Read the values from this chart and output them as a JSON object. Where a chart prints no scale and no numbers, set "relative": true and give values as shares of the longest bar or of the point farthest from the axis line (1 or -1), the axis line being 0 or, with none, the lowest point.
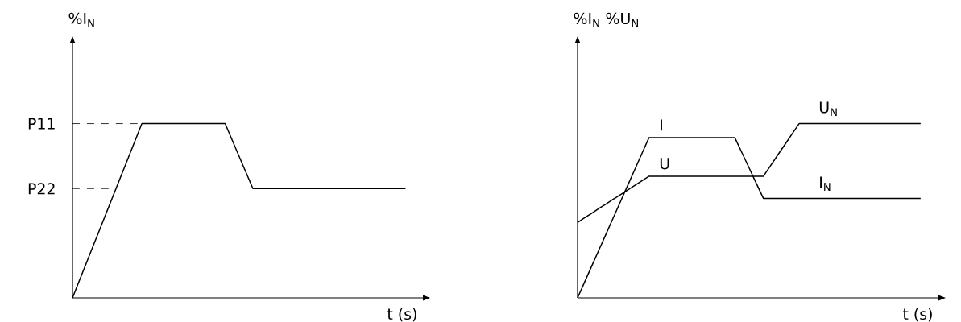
{
  "chart_data": [
    {
      "type": "line",
      "relative": true,
      "xlabel": "t (s)",
      "ylabel": "%I$_{N}$",
      "categories": [
        null,
        null,
        null,
        null,
        null,
        null,
        null,
        null,
        null,
        null,
        null,
        null,
        null,
        null,
        null,
        null,
        null,
        null,
        null,
        null,
        null,
        null,
        null,
        null,
        null,
        null,
        null,
        null,
        null,
        null,
        null,
        null,
        null,
        null,
        null,
        null,
        null,
        null,
        null,
        null,
        null,
        null,
        null,
        null,
        null,
        null,
        null,
        null,
        null
      ],
      "series": [
        {
          "color": "#000000",
          "values": [
            0,
            0.1,
            0.2,
            0.3,
            0.4,
            0.5,
            0.6,
            0.7,
            0.8,
            0.9,
            1,
            1,
            1,
            1,
            1,
            1,
            1,
            1,
            1,
            1,
            1,
            1,
            1,
            0.907,
            0.813,
            0.72,
            0.627,
            0.627,
            0.627,
            0.627,
            0.627,
            0.627,
            0.627,
            0.627,
            0.627,
            0.627,
            0.627,
            0.627,
            0.627,
            0.627,
            0.627,
            0.627,
            0.627,
            0.627,
            0.627,
            0.627,
            0.627,
            0.627,
            0.627
          ]
        }
      ],
      "ref_lines": [
        {
          "axis": "y",
          "value": 1,
          "label": "P11",
          "line_style": "dashed"
        },
        {
          "axis": "y",
          "value": 0.627,
          "label": "P22",
          "line_style": "dashed"
        }
      ]
    },
    {
      "type": "line",
      "relative": true,
      "xlabel": "t (s)",
      "ylabel": "%I$_{N}$  %U$_{N}$",
      "categories": [
        null,
        null,
        null,
        null,
        null,
        null,
        null,
        null,
        null,
        null,
        null,
        null,
        null,
        null,
        null,
        null,
        null,
        null,
        null,
        null,
        null,
        null,
        null,
        null,
        null,
        null,
        null,
        null,
        null,
        null,
        null,
        null,
        null,
        null,
        null,
        null,
        null,
        null,
        null,
        null,
        null,
        null,
        null,
        null,
        null,
        null,
        null,
        null,
        null
      ],
      "series": [
        {
          "name": "I",
          "color": "#000000",
          "values": [
            0,
            0.092,
            0.184,
            0.276,
            0.368,
            0.46,
            0.552,
            0.644,
            0.736,
            0.828,
            0.92,
            0.92,
            0.92,
            0.92,
            0.92,
            0.92,
            0.92,
            0.92,
            0.92,
            0.92,
            0.92,
            0.92,
            0.92,
            0.833,
            0.746,
            0.658,
            0.571,
            0.571,
            0.571,
            0.571,
            0.571,
            0.571,
            0.571,
            0.571,
            0.571,
            0.571,
            0.571,
            0.571,
            0.571,
            0.571,
            0.571,
            0.571,
            0.571,
            0.571,
            0.571,
            0.571,
            0.571,
            0.571,
            0.571
          ]
        },
        {
          "name": "U",
          "color": "#000000",
          "values": [
            0.433,
            0.46,
            0.486,
            0.513,
            0.539,
            0.566,
            0.592,
            0.619,
            0.645,
            0.672,
            0.698,
            0.698,
            0.698,
            0.698,
            0.698,
            0.698,
            0.698,
            0.698,
            0.698,
            0.698,
            0.698,
            0.698,
            0.698,
            0.698,
            0.698,
            0.698,
            0.698,
            0.758,
            0.819,
            0.879,
            0.94,
            1,
            1,
            1,
            1,
            1,
            1,
            1,
            1,
            1,
            1,
            1,
            1,
            1,
            1,
            1,
            1,
            1,
            1
          ]
        }
      ],
      "annotations": [
        {
          "text": "U$_{N}$",
          "y": 1
        },
        {
          "text": "I$_{N}$",
          "y": 0.571
        }
      ]
    }
  ]
}
